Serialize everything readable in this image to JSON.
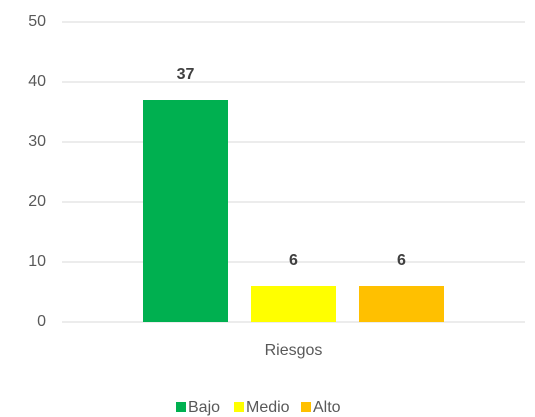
{
  "chart_data": {
    "type": "bar",
    "categories": [
      "Riesgos"
    ],
    "series": [
      {
        "name": "Bajo",
        "color": "#00b050",
        "values": [
          37
        ]
      },
      {
        "name": "Medio",
        "color": "#ffff00",
        "values": [
          6
        ]
      },
      {
        "name": "Alto",
        "color": "#ffc000",
        "values": [
          6
        ]
      }
    ],
    "ylim": [
      0,
      50
    ],
    "yticks": [
      0,
      10,
      20,
      30,
      40,
      50
    ],
    "grid": true,
    "legend": "bottom"
  }
}
